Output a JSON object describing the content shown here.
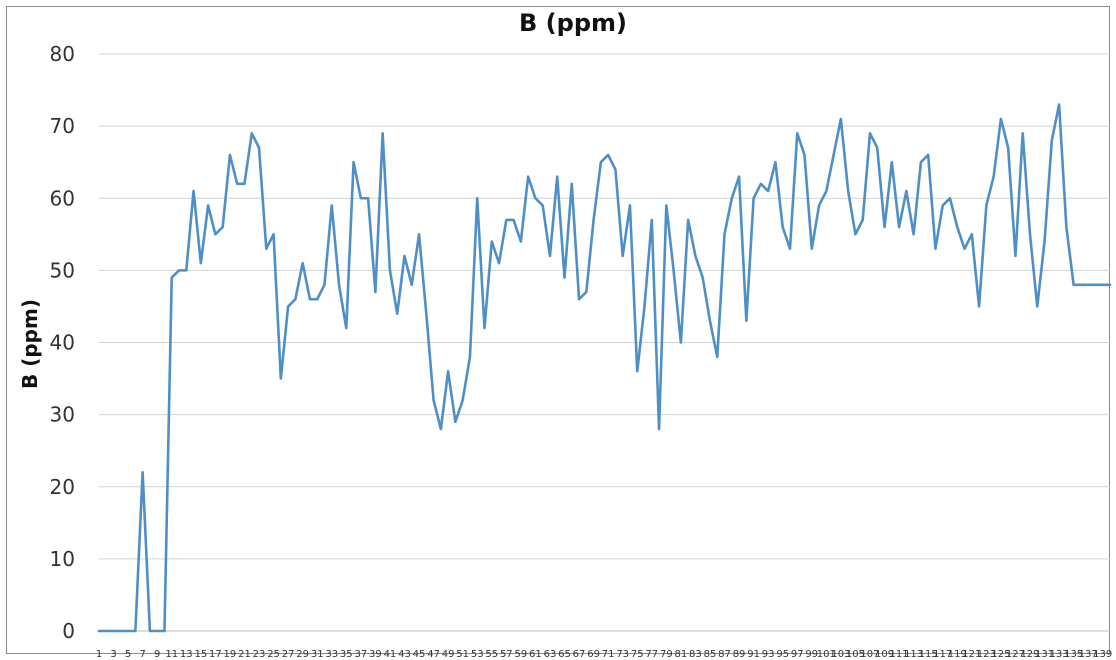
{
  "chart_data": {
    "type": "line",
    "title": "B (ppm)",
    "xlabel": "",
    "ylabel": "B (ppm)",
    "ylim": [
      0,
      80
    ],
    "yticks": [
      0,
      10,
      20,
      30,
      40,
      50,
      60,
      70,
      80
    ],
    "grid": true,
    "legend": "none",
    "line_color": "#4f8fc7",
    "x": [
      1,
      2,
      3,
      4,
      5,
      6,
      7,
      8,
      9,
      10,
      11,
      12,
      13,
      14,
      15,
      16,
      17,
      18,
      19,
      20,
      21,
      22,
      23,
      24,
      25,
      26,
      27,
      28,
      29,
      30,
      31,
      32,
      33,
      34,
      35,
      36,
      37,
      38,
      39,
      40,
      41,
      42,
      43,
      44,
      45,
      46,
      47,
      48,
      49,
      50,
      51,
      52,
      53,
      54,
      55,
      56,
      57,
      58,
      59,
      60,
      61,
      62,
      63,
      64,
      65,
      66,
      67,
      68,
      69,
      70,
      71,
      72,
      73,
      74,
      75,
      76,
      77,
      78,
      79,
      80,
      81,
      82,
      83,
      84,
      85,
      86,
      87,
      88,
      89,
      90,
      91,
      92,
      93,
      94,
      95,
      96,
      97,
      98,
      99,
      100,
      101,
      102,
      103,
      104,
      105,
      106,
      107,
      108,
      109,
      110,
      111,
      112,
      113,
      114,
      115,
      116,
      117,
      118,
      119,
      120,
      121,
      122,
      123,
      124,
      125,
      126,
      127,
      128,
      129,
      130,
      131,
      132,
      133,
      134,
      135,
      136,
      137,
      138,
      139,
      140
    ],
    "series": [
      {
        "values": [
          0,
          0,
          0,
          0,
          0,
          0,
          22,
          0,
          0,
          0,
          49,
          50,
          50,
          61,
          51,
          59,
          55,
          56,
          66,
          62,
          62,
          69,
          67,
          53,
          55,
          35,
          45,
          46,
          51,
          46,
          46,
          48,
          59,
          48,
          42,
          65,
          60,
          60,
          47,
          69,
          50,
          44,
          52,
          48,
          55,
          44,
          32,
          28,
          36,
          29,
          32,
          38,
          60,
          42,
          54,
          51,
          57,
          57,
          54,
          63,
          60,
          59,
          52,
          63,
          49,
          62,
          46,
          47,
          57,
          65,
          66,
          64,
          52,
          59,
          36,
          45,
          57,
          28,
          59,
          50,
          40,
          57,
          52,
          49,
          43,
          38,
          55,
          60,
          63,
          43,
          60,
          62,
          61,
          65,
          56,
          53,
          69,
          66,
          53,
          59,
          61,
          66,
          71,
          61,
          55,
          57,
          69,
          67,
          56,
          65,
          56,
          61,
          55,
          65,
          66,
          53,
          59,
          60,
          56,
          53,
          55,
          45,
          59,
          63,
          71,
          67,
          52,
          69,
          55,
          45,
          54,
          68,
          73,
          56,
          48,
          48,
          48,
          48,
          48,
          48
        ]
      }
    ],
    "xtick_labels": [
      "1",
      "3",
      "5",
      "7",
      "9",
      "11",
      "13",
      "15",
      "17",
      "19",
      "21",
      "23",
      "25",
      "27",
      "29",
      "31",
      "33",
      "35",
      "37",
      "39",
      "41",
      "43",
      "45",
      "47",
      "49",
      "51",
      "53",
      "55",
      "57",
      "59",
      "61",
      "63",
      "65",
      "67",
      "69",
      "71",
      "73",
      "75",
      "77",
      "79",
      "81",
      "83",
      "85",
      "87",
      "89",
      "91",
      "93",
      "95",
      "97",
      "99",
      "101",
      "103",
      "105",
      "107",
      "109",
      "111",
      "113",
      "115",
      "117",
      "119",
      "121",
      "123",
      "125",
      "127",
      "129",
      "131",
      "133",
      "135",
      "137",
      "139"
    ]
  }
}
